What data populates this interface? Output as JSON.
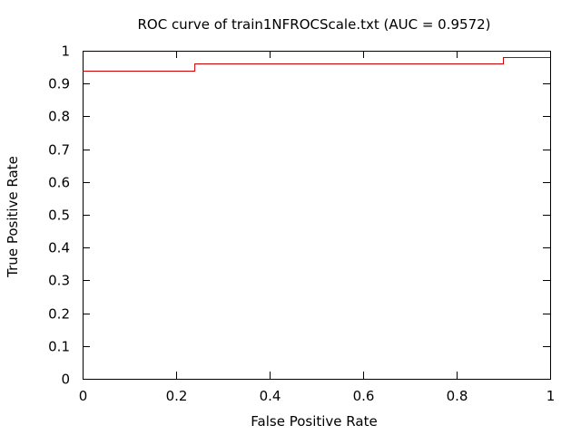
{
  "chart_data": {
    "type": "line",
    "title": "ROC curve of train1NFROCScale.txt (AUC = 0.9572)",
    "xlabel": "False Positive Rate",
    "ylabel": "True Positive Rate",
    "xlim": [
      0,
      1
    ],
    "ylim": [
      0,
      1
    ],
    "grid": false,
    "legend": "none",
    "x_ticks": [
      "0",
      "0.2",
      "0.4",
      "0.6",
      "0.8",
      "1"
    ],
    "y_ticks": [
      "0",
      "0.1",
      "0.2",
      "0.3",
      "0.4",
      "0.5",
      "0.6",
      "0.7",
      "0.8",
      "0.9",
      "1"
    ],
    "series": [
      {
        "color": "#cc0000",
        "step": true,
        "x": [
          0,
          0.24,
          0.24,
          0.9,
          0.9,
          1.0
        ],
        "y": [
          0.94,
          0.94,
          0.96,
          0.96,
          0.98,
          0.98
        ]
      }
    ]
  }
}
